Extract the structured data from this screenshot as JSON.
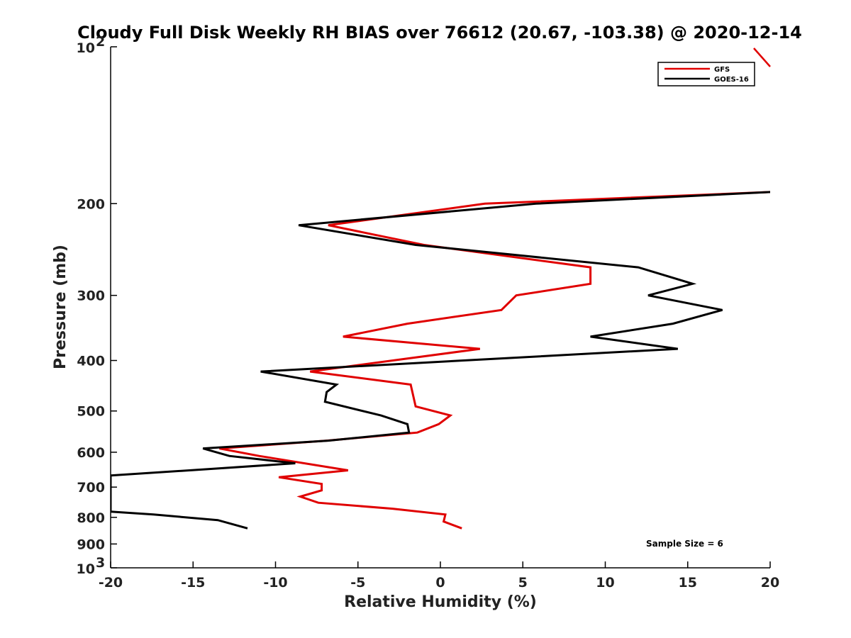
{
  "chart_data": {
    "type": "line",
    "title": "Cloudy Full Disk Weekly RH BIAS over 76612 (20.67, -103.38) @ 2020-12-14",
    "xlabel": "Relative Humidity (%)",
    "ylabel": "Pressure (mb)",
    "xlim": [
      -20,
      20
    ],
    "ylim": [
      100,
      1000
    ],
    "yscale": "log",
    "y_reversed": true,
    "grid": false,
    "x_ticks": [
      -20,
      -15,
      -10,
      -5,
      0,
      5,
      10,
      15,
      20
    ],
    "x_tick_labels": [
      "-20",
      "-15",
      "-10",
      "-5",
      "0",
      "5",
      "10",
      "15",
      "20"
    ],
    "y_ticks": [
      {
        "value": 100,
        "base": "10",
        "exp": "2"
      },
      {
        "value": 200,
        "label": "200"
      },
      {
        "value": 300,
        "label": "300"
      },
      {
        "value": 400,
        "label": "400"
      },
      {
        "value": 500,
        "label": "500"
      },
      {
        "value": 600,
        "label": "600"
      },
      {
        "value": 700,
        "label": "700"
      },
      {
        "value": 800,
        "label": "800"
      },
      {
        "value": 900,
        "label": "900"
      },
      {
        "value": 1000,
        "base": "10",
        "exp": "3"
      }
    ],
    "legend_position": "top-right",
    "annotation": "Sample Size = 6",
    "series": [
      {
        "name": "GFS",
        "color": "#e00000",
        "points": [
          [
            20.0,
            190
          ],
          [
            2.7,
            200
          ],
          [
            -6.8,
            220
          ],
          [
            -1.0,
            240
          ],
          [
            9.1,
            265
          ],
          [
            9.1,
            285
          ],
          [
            4.6,
            300
          ],
          [
            3.7,
            320
          ],
          [
            -2.0,
            340
          ],
          [
            -5.9,
            360
          ],
          [
            2.4,
            380
          ],
          [
            -7.9,
            420
          ],
          [
            -1.8,
            445
          ],
          [
            -1.5,
            490
          ],
          [
            0.6,
            510
          ],
          [
            -0.1,
            530
          ],
          [
            -1.4,
            550
          ],
          [
            -6.9,
            570
          ],
          [
            -13.4,
            590
          ],
          [
            -11.0,
            610
          ],
          [
            -5.6,
            650
          ],
          [
            -9.8,
            670
          ],
          [
            -7.2,
            690
          ],
          [
            -7.2,
            710
          ],
          [
            -8.5,
            730
          ],
          [
            -7.4,
            750
          ],
          [
            -2.9,
            770
          ],
          [
            0.3,
            790
          ],
          [
            0.2,
            815
          ],
          [
            1.3,
            840
          ]
        ]
      },
      {
        "name": "GOES-16",
        "color": "#000000",
        "points": [
          [
            20.0,
            190
          ],
          [
            5.8,
            200
          ],
          [
            -8.6,
            220
          ],
          [
            -1.5,
            240
          ],
          [
            12.0,
            265
          ],
          [
            15.3,
            285
          ],
          [
            12.6,
            300
          ],
          [
            17.1,
            320
          ],
          [
            14.1,
            340
          ],
          [
            9.1,
            360
          ],
          [
            14.4,
            380
          ],
          [
            -10.9,
            420
          ],
          [
            -6.3,
            445
          ],
          [
            -6.9,
            460
          ],
          [
            -7.0,
            480
          ],
          [
            -3.6,
            510
          ],
          [
            -2.0,
            530
          ],
          [
            -1.9,
            550
          ],
          [
            -6.8,
            570
          ],
          [
            -14.4,
            590
          ],
          [
            -12.8,
            610
          ],
          [
            -8.8,
            630
          ],
          [
            -13.6,
            645
          ],
          [
            -20.0,
            665
          ],
          [
            -20.0,
            780
          ],
          [
            -17.4,
            790
          ],
          [
            -13.5,
            810
          ],
          [
            -11.7,
            840
          ]
        ]
      }
    ]
  }
}
